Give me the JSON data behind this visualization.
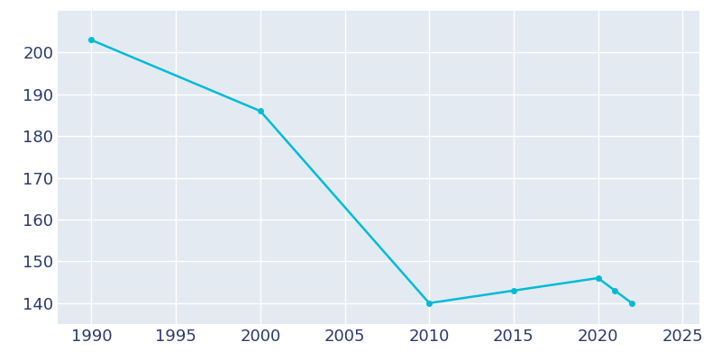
{
  "years": [
    1990,
    2000,
    2010,
    2015,
    2020,
    2021,
    2022
  ],
  "population": [
    203,
    186,
    140,
    143,
    146,
    143,
    140
  ],
  "line_color": "#00BCD4",
  "marker": "o",
  "marker_size": 4,
  "bg_color": "#E3EAF2",
  "plot_bg_color": "#E3EAF2",
  "outer_bg_color": "#ffffff",
  "grid_color": "#ffffff",
  "xlim": [
    1988,
    2026
  ],
  "ylim": [
    135,
    210
  ],
  "xticks": [
    1990,
    1995,
    2000,
    2005,
    2010,
    2015,
    2020,
    2025
  ],
  "yticks": [
    140,
    150,
    160,
    170,
    180,
    190,
    200
  ],
  "tick_color": "#2b3a6b",
  "tick_fontsize": 13,
  "linewidth": 1.8
}
